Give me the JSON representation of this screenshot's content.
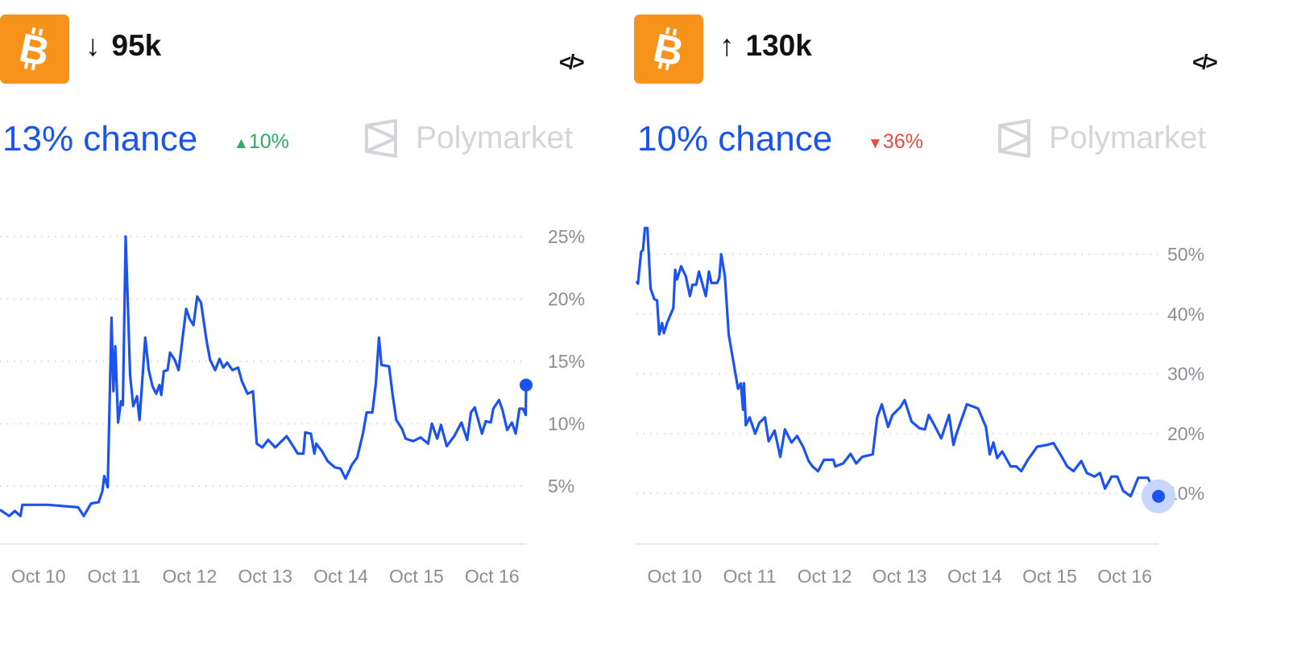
{
  "colors": {
    "accent": "#1A53F0",
    "coin": "#F7931A",
    "up": "#27AE60",
    "down": "#E74C3C",
    "logo": "#D3D5DA",
    "grid": "#D6D8DC",
    "axis": "#E6E7EA",
    "tick": "#8a8d93",
    "halo": "#C9D6FB"
  },
  "markets": [
    {
      "icon": "bitcoin-icon",
      "direction": "↓",
      "target": "95k",
      "code_icon": "</>",
      "chance": "13% chance",
      "change_icon": "▲",
      "change": "10%",
      "change_dir": "up",
      "brand": "Polymarket"
    },
    {
      "icon": "bitcoin-icon",
      "direction": "↑",
      "target": "130k",
      "code_icon": "</>",
      "chance": "10% chance",
      "change_icon": "▼",
      "change": "36%",
      "change_dir": "down",
      "brand": "Polymarket"
    }
  ],
  "chart_data": [
    {
      "type": "line",
      "title": "",
      "xlabel": "",
      "ylabel": "",
      "grid": true,
      "xlim": [
        "Oct 9 11:48",
        "Oct 16 10:48"
      ],
      "ylim": [
        0,
        25
      ],
      "yticks": [
        5,
        10,
        15,
        20,
        25
      ],
      "ytick_labels": [
        "5%",
        "10%",
        "15%",
        "20%",
        "25%"
      ],
      "xtick_labels": [
        "Oct 10",
        "Oct 11",
        "Oct 12",
        "Oct 13",
        "Oct 14",
        "Oct 15",
        "Oct 16"
      ],
      "series": [
        {
          "x": [
            "Oct 9 11:48",
            "Oct 9 14:42",
            "Oct 9 16:30",
            "Oct 9 18:18",
            "Oct 9 18:54",
            "Oct 10 03:06",
            "Oct 10 12:36",
            "Oct 10 14:24",
            "Oct 10 16:42",
            "Oct 10 19:06",
            "Oct 10 20:18",
            "Oct 10 20:54",
            "Oct 10 22:00",
            "Oct 10 23:12",
            "Oct 10 23:48",
            "Oct 11 00:24",
            "Oct 11 01:18",
            "Oct 11 02:12",
            "Oct 11 02:48",
            "Oct 11 03:42",
            "Oct 11 05:06",
            "Oct 11 06:06",
            "Oct 11 07:18",
            "Oct 11 08:06",
            "Oct 11 09:54",
            "Oct 11 11:00",
            "Oct 11 12:12",
            "Oct 11 13:24",
            "Oct 11 14:24",
            "Oct 11 15:00",
            "Oct 11 15:48",
            "Oct 11 17:00",
            "Oct 11 17:48",
            "Oct 11 19:18",
            "Oct 11 20:30",
            "Oct 11 22:54",
            "Oct 12 00:00",
            "Oct 12 01:12",
            "Oct 12 02:24",
            "Oct 12 03:36",
            "Oct 12 05:24",
            "Oct 12 06:30",
            "Oct 12 08:06",
            "Oct 12 09:30",
            "Oct 12 10:42",
            "Oct 12 11:54",
            "Oct 12 13:36",
            "Oct 12 15:24",
            "Oct 12 16:36",
            "Oct 12 18:24",
            "Oct 12 20:06",
            "Oct 12 21:18",
            "Oct 12 23:06",
            "Oct 13 00:54",
            "Oct 13 03:12",
            "Oct 13 06:48",
            "Oct 13 09:06",
            "Oct 13 10:18",
            "Oct 13 12:06",
            "Oct 13 12:42",
            "Oct 13 14:30",
            "Oct 13 15:36",
            "Oct 13 16:12",
            "Oct 13 18:00",
            "Oct 13 19:48",
            "Oct 13 22:06",
            "Oct 13 23:54",
            "Oct 14 01:30",
            "Oct 14 03:30",
            "Oct 14 05:12",
            "Oct 14 07:00",
            "Oct 14 08:12",
            "Oct 14 10:00",
            "Oct 14 11:06",
            "Oct 14 12:06",
            "Oct 14 12:54",
            "Oct 14 15:18",
            "Oct 14 16:30",
            "Oct 14 17:36",
            "Oct 14 19:24",
            "Oct 14 20:36",
            "Oct 14 23:00",
            "Oct 15 01:18",
            "Oct 15 03:42",
            "Oct 15 04:54",
            "Oct 15 06:36",
            "Oct 15 07:48",
            "Oct 15 09:36",
            "Oct 15 12:00",
            "Oct 15 14:18",
            "Oct 15 16:06",
            "Oct 15 17:18",
            "Oct 15 18:30",
            "Oct 15 20:48",
            "Oct 15 22:00",
            "Oct 15 23:36",
            "Oct 16 00:24",
            "Oct 16 02:12",
            "Oct 16 03:18",
            "Oct 16 04:48",
            "Oct 16 06:18",
            "Oct 16 07:30",
            "Oct 16 08:42",
            "Oct 16 09:48",
            "Oct 16 10:42",
            "Oct 16 10:48"
          ],
          "y": [
            3.1,
            2.6,
            3.0,
            2.6,
            3.5,
            3.5,
            3.3,
            2.6,
            3.6,
            3.7,
            4.6,
            5.8,
            4.9,
            18.5,
            12.6,
            16.2,
            10.1,
            11.8,
            11.5,
            25.0,
            13.9,
            11.4,
            12.2,
            10.3,
            16.9,
            14.3,
            13.0,
            12.4,
            13.1,
            12.3,
            14.2,
            14.3,
            15.7,
            15.1,
            14.3,
            19.2,
            18.4,
            17.9,
            20.2,
            19.7,
            16.6,
            15.1,
            14.3,
            15.2,
            14.5,
            14.9,
            14.3,
            14.5,
            13.4,
            12.4,
            12.6,
            8.4,
            8.1,
            8.7,
            8.1,
            9.0,
            8.1,
            7.6,
            7.6,
            9.3,
            9.2,
            7.6,
            8.4,
            7.8,
            7.0,
            6.5,
            6.4,
            5.6,
            6.7,
            7.3,
            9.2,
            10.9,
            10.9,
            13.2,
            16.9,
            14.7,
            14.6,
            12.2,
            10.3,
            9.6,
            8.8,
            8.6,
            8.9,
            8.4,
            10.0,
            8.8,
            9.9,
            8.2,
            9.0,
            10.1,
            8.7,
            10.9,
            11.3,
            9.2,
            10.2,
            10.1,
            11.2,
            11.9,
            11.1,
            9.5,
            10.1,
            9.2,
            11.2,
            11.2,
            10.7,
            13.1
          ]
        }
      ]
    },
    {
      "type": "line",
      "title": "",
      "xlabel": "",
      "ylabel": "",
      "grid": true,
      "xlim": [
        "Oct 9 11:48",
        "Oct 16 10:48"
      ],
      "ylim": [
        0,
        50
      ],
      "yticks": [
        10,
        20,
        30,
        40,
        50
      ],
      "ytick_labels": [
        "10%",
        "20%",
        "30%",
        "40%",
        "50%"
      ],
      "xtick_labels": [
        "Oct 10",
        "Oct 11",
        "Oct 12",
        "Oct 13",
        "Oct 14",
        "Oct 15",
        "Oct 16"
      ],
      "series": [
        {
          "x": [
            "Oct 9 11:48",
            "Oct 9 12:18",
            "Oct 9 13:18",
            "Oct 9 13:54",
            "Oct 9 14:30",
            "Oct 9 15:18",
            "Oct 9 16:18",
            "Oct 9 17:30",
            "Oct 9 18:24",
            "Oct 9 19:06",
            "Oct 9 20:00",
            "Oct 9 20:36",
            "Oct 9 21:36",
            "Oct 9 23:36",
            "Oct 10 00:12",
            "Oct 10 00:48",
            "Oct 10 02:06",
            "Oct 10 03:36",
            "Oct 10 04:54",
            "Oct 10 05:42",
            "Oct 10 06:54",
            "Oct 10 07:48",
            "Oct 10 10:00",
            "Oct 10 11:00",
            "Oct 10 11:48",
            "Oct 10 13:36",
            "Oct 10 14:18",
            "Oct 10 14:54",
            "Oct 10 16:06",
            "Oct 10 17:18",
            "Oct 10 19:06",
            "Oct 10 20:18",
            "Oct 10 21:12",
            "Oct 10 21:54",
            "Oct 10 22:12",
            "Oct 10 22:48",
            "Oct 11 00:00",
            "Oct 11 01:48",
            "Oct 11 03:06",
            "Oct 11 04:54",
            "Oct 11 06:06",
            "Oct 11 08:00",
            "Oct 11 09:48",
            "Oct 11 11:18",
            "Oct 11 13:24",
            "Oct 11 15:12",
            "Oct 11 17:06",
            "Oct 11 18:54",
            "Oct 11 20:06",
            "Oct 11 21:54",
            "Oct 11 23:48",
            "Oct 12 02:48",
            "Oct 12 03:24",
            "Oct 12 05:54",
            "Oct 12 08:18",
            "Oct 12 10:06",
            "Oct 12 12:00",
            "Oct 12 15:24",
            "Oct 12 16:48",
            "Oct 12 18:18",
            "Oct 12 20:18",
            "Oct 12 21:42",
            "Oct 13 00:12",
            "Oct 13 01:36",
            "Oct 13 03:48",
            "Oct 13 06:18",
            "Oct 13 08:06",
            "Oct 13 09:18",
            "Oct 13 11:06",
            "Oct 13 13:18",
            "Oct 13 15:48",
            "Oct 13 17:12",
            "Oct 13 18:12",
            "Oct 13 20:18",
            "Oct 13 21:30",
            "Oct 14 01:06",
            "Oct 14 03:36",
            "Oct 14 04:48",
            "Oct 14 06:00",
            "Oct 14 07:12",
            "Oct 14 08:48",
            "Oct 14 11:30",
            "Oct 14 13:18",
            "Oct 14 14:54",
            "Oct 14 17:00",
            "Oct 14 20:00",
            "Oct 14 23:06",
            "Oct 15 01:12",
            "Oct 15 03:24",
            "Oct 15 05:36",
            "Oct 15 07:36",
            "Oct 15 10:06",
            "Oct 15 11:54",
            "Oct 15 14:18",
            "Oct 15 16:06",
            "Oct 15 17:42",
            "Oct 15 19:48",
            "Oct 15 21:36",
            "Oct 15 23:30",
            "Oct 16 01:54",
            "Oct 16 04:18",
            "Oct 16 07:24",
            "Oct 16 08:24",
            "Oct 16 09:36",
            "Oct 16 10:48"
          ],
          "y": [
            45.5,
            45.1,
            50.4,
            50.7,
            54.4,
            54.4,
            44.3,
            42.5,
            42.3,
            36.6,
            38.5,
            36.8,
            38.5,
            41.0,
            47.4,
            45.8,
            48.0,
            46.3,
            43.0,
            44.9,
            44.9,
            47.1,
            43.0,
            47.1,
            45.2,
            45.2,
            46.0,
            50.0,
            46.3,
            36.6,
            31.1,
            27.5,
            28.4,
            24.0,
            28.4,
            21.4,
            22.7,
            20.0,
            21.8,
            22.7,
            18.7,
            20.5,
            16.1,
            20.7,
            18.5,
            19.6,
            17.8,
            15.4,
            14.5,
            13.7,
            15.6,
            15.6,
            14.5,
            15.0,
            16.6,
            15.0,
            16.1,
            16.5,
            22.7,
            24.9,
            21.1,
            23.1,
            24.4,
            25.6,
            22.0,
            20.9,
            20.7,
            23.1,
            21.4,
            19.2,
            23.1,
            18.1,
            20.0,
            23.1,
            24.9,
            24.2,
            21.1,
            16.5,
            18.5,
            15.9,
            17.0,
            14.5,
            14.5,
            13.7,
            15.6,
            17.8,
            18.1,
            18.4,
            16.5,
            14.5,
            13.7,
            15.4,
            13.4,
            12.8,
            13.4,
            10.8,
            12.8,
            12.8,
            10.4,
            9.5,
            12.6,
            12.6,
            11.5,
            11.5,
            9.5
          ]
        }
      ]
    }
  ]
}
